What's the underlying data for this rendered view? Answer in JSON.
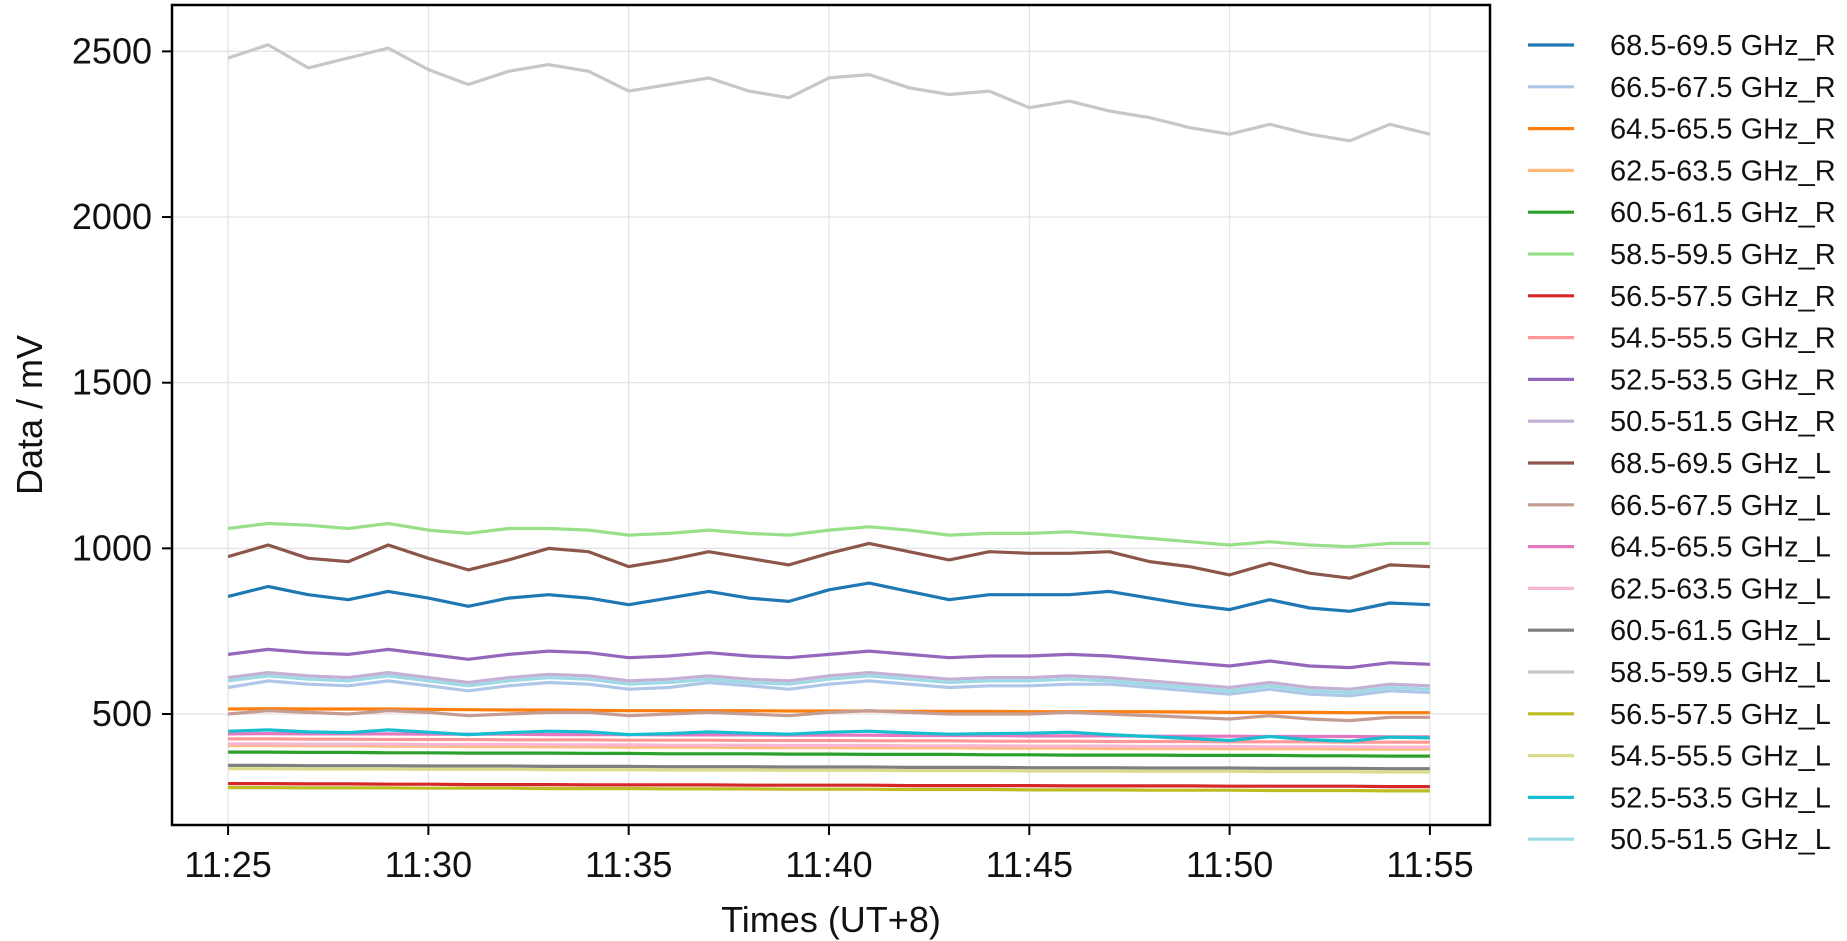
{
  "chart_data": {
    "type": "line",
    "title": "",
    "xlabel": "Times (UT+8)",
    "ylabel": "Data / mV",
    "x_ticks": [
      "11:25",
      "11:30",
      "11:35",
      "11:40",
      "11:45",
      "11:50",
      "11:55"
    ],
    "y_ticks": [
      500,
      1000,
      1500,
      2000,
      2500
    ],
    "xlim": [
      "11:23.6",
      "11:56.5"
    ],
    "ylim": [
      165,
      2640
    ],
    "grid": true,
    "legend_placement": "outside-right",
    "x": [
      "11:25",
      "11:26",
      "11:27",
      "11:28",
      "11:29",
      "11:30",
      "11:31",
      "11:32",
      "11:33",
      "11:34",
      "11:35",
      "11:36",
      "11:37",
      "11:38",
      "11:39",
      "11:40",
      "11:41",
      "11:42",
      "11:43",
      "11:44",
      "11:45",
      "11:46",
      "11:47",
      "11:48",
      "11:49",
      "11:50",
      "11:51",
      "11:52",
      "11:53",
      "11:54",
      "11:55"
    ],
    "series": [
      {
        "name": "68.5-69.5 GHz_R",
        "color": "#1f77b4",
        "values": [
          855,
          885,
          860,
          845,
          870,
          850,
          825,
          850,
          860,
          850,
          830,
          850,
          870,
          850,
          840,
          875,
          895,
          870,
          845,
          860,
          860,
          860,
          870,
          850,
          830,
          815,
          845,
          820,
          810,
          835,
          830
        ]
      },
      {
        "name": "66.5-67.5 GHz_R",
        "color": "#aec7e8",
        "values": [
          580,
          600,
          590,
          585,
          600,
          585,
          570,
          585,
          595,
          590,
          575,
          580,
          595,
          585,
          575,
          590,
          600,
          590,
          580,
          585,
          585,
          590,
          590,
          580,
          570,
          560,
          575,
          560,
          555,
          570,
          565
        ]
      },
      {
        "name": "64.5-65.5 GHz_R",
        "color": "#ff7f0e",
        "values": [
          515,
          516,
          515,
          515,
          515,
          514,
          513,
          512,
          512,
          511,
          510,
          510,
          510,
          510,
          509,
          509,
          509,
          508,
          508,
          508,
          507,
          507,
          507,
          507,
          506,
          505,
          505,
          505,
          504,
          504,
          504
        ]
      },
      {
        "name": "62.5-63.5 GHz_R",
        "color": "#ffbb78",
        "values": [
          405,
          405,
          404,
          404,
          403,
          403,
          402,
          402,
          401,
          401,
          400,
          400,
          400,
          399,
          399,
          399,
          398,
          398,
          398,
          397,
          397,
          397,
          396,
          396,
          396,
          395,
          395,
          395,
          394,
          394,
          394
        ]
      },
      {
        "name": "60.5-61.5 GHz_R",
        "color": "#2ca02c",
        "values": [
          385,
          385,
          384,
          384,
          383,
          383,
          382,
          382,
          382,
          381,
          381,
          380,
          380,
          380,
          379,
          379,
          378,
          378,
          378,
          377,
          377,
          376,
          376,
          376,
          375,
          375,
          375,
          374,
          374,
          373,
          373
        ]
      },
      {
        "name": "58.5-59.5 GHz_R",
        "color": "#98df8a",
        "values": [
          1060,
          1075,
          1070,
          1060,
          1075,
          1055,
          1045,
          1060,
          1060,
          1055,
          1040,
          1045,
          1055,
          1045,
          1040,
          1055,
          1065,
          1055,
          1040,
          1045,
          1045,
          1050,
          1040,
          1030,
          1020,
          1010,
          1020,
          1010,
          1005,
          1015,
          1015
        ]
      },
      {
        "name": "56.5-57.5 GHz_R",
        "color": "#d62728",
        "values": [
          290,
          290,
          289,
          289,
          288,
          288,
          287,
          287,
          287,
          286,
          286,
          286,
          286,
          285,
          285,
          285,
          285,
          284,
          284,
          284,
          284,
          283,
          283,
          283,
          283,
          282,
          282,
          282,
          282,
          281,
          281
        ]
      },
      {
        "name": "54.5-55.5 GHz_R",
        "color": "#ff9896",
        "values": [
          425,
          425,
          424,
          424,
          423,
          423,
          423,
          422,
          422,
          422,
          421,
          421,
          421,
          420,
          420,
          420,
          419,
          419,
          419,
          418,
          418,
          418,
          417,
          417,
          417,
          416,
          416,
          416,
          415,
          415,
          415
        ]
      },
      {
        "name": "52.5-53.5 GHz_R",
        "color": "#9467bd",
        "values": [
          680,
          695,
          685,
          680,
          695,
          680,
          665,
          680,
          690,
          685,
          670,
          675,
          685,
          675,
          670,
          680,
          690,
          680,
          670,
          675,
          675,
          680,
          675,
          665,
          655,
          645,
          660,
          645,
          640,
          655,
          650
        ]
      },
      {
        "name": "50.5-51.5 GHz_R",
        "color": "#c5b0d5",
        "values": [
          610,
          625,
          615,
          610,
          625,
          610,
          595,
          610,
          620,
          615,
          600,
          605,
          615,
          605,
          600,
          615,
          625,
          615,
          605,
          610,
          610,
          615,
          610,
          600,
          590,
          580,
          595,
          580,
          575,
          590,
          585
        ]
      },
      {
        "name": "68.5-69.5 GHz_L",
        "color": "#8c564b",
        "values": [
          975,
          1010,
          970,
          960,
          1010,
          970,
          935,
          965,
          1000,
          990,
          945,
          965,
          990,
          970,
          950,
          985,
          1015,
          990,
          965,
          990,
          985,
          985,
          990,
          960,
          945,
          920,
          955,
          925,
          910,
          950,
          945
        ]
      },
      {
        "name": "66.5-67.5 GHz_L",
        "color": "#c49c94",
        "values": [
          500,
          510,
          505,
          500,
          510,
          505,
          495,
          500,
          505,
          505,
          495,
          500,
          505,
          500,
          495,
          505,
          510,
          505,
          500,
          500,
          500,
          505,
          500,
          495,
          490,
          485,
          495,
          485,
          480,
          490,
          490
        ]
      },
      {
        "name": "64.5-65.5 GHz_L",
        "color": "#e377c2",
        "values": [
          440,
          441,
          440,
          440,
          440,
          439,
          439,
          439,
          438,
          438,
          438,
          437,
          437,
          437,
          436,
          436,
          436,
          435,
          435,
          435,
          434,
          434,
          434,
          433,
          433,
          433,
          432,
          432,
          432,
          431,
          431
        ]
      },
      {
        "name": "62.5-63.5 GHz_L",
        "color": "#f7b6d2",
        "values": [
          410,
          410,
          409,
          409,
          409,
          408,
          408,
          408,
          407,
          407,
          407,
          406,
          406,
          406,
          405,
          405,
          405,
          404,
          404,
          404,
          403,
          403,
          403,
          402,
          402,
          402,
          401,
          401,
          401,
          400,
          400
        ]
      },
      {
        "name": "60.5-61.5 GHz_L",
        "color": "#7f7f7f",
        "values": [
          345,
          345,
          344,
          344,
          344,
          343,
          343,
          343,
          342,
          342,
          342,
          341,
          341,
          341,
          340,
          340,
          340,
          339,
          339,
          339,
          338,
          338,
          338,
          337,
          337,
          337,
          336,
          336,
          336,
          335,
          335
        ]
      },
      {
        "name": "58.5-59.5 GHz_L",
        "color": "#c7c7c7",
        "values": [
          2480,
          2520,
          2450,
          2480,
          2510,
          2445,
          2400,
          2440,
          2460,
          2440,
          2380,
          2400,
          2420,
          2380,
          2360,
          2420,
          2430,
          2390,
          2370,
          2380,
          2330,
          2350,
          2320,
          2300,
          2270,
          2250,
          2280,
          2250,
          2230,
          2280,
          2250
        ]
      },
      {
        "name": "56.5-57.5 GHz_L",
        "color": "#bcbd22",
        "values": [
          278,
          278,
          277,
          277,
          277,
          276,
          276,
          276,
          275,
          275,
          275,
          274,
          274,
          274,
          273,
          273,
          273,
          272,
          272,
          272,
          271,
          271,
          271,
          270,
          270,
          270,
          269,
          269,
          269,
          268,
          268
        ]
      },
      {
        "name": "54.5-55.5 GHz_L",
        "color": "#dbdb8d",
        "values": [
          335,
          335,
          334,
          334,
          334,
          333,
          333,
          333,
          332,
          332,
          332,
          331,
          331,
          331,
          330,
          330,
          330,
          329,
          329,
          329,
          328,
          328,
          328,
          327,
          327,
          327,
          326,
          326,
          326,
          325,
          325
        ]
      },
      {
        "name": "52.5-53.5 GHz_L",
        "color": "#17becf",
        "values": [
          448,
          452,
          446,
          444,
          452,
          445,
          438,
          444,
          448,
          446,
          438,
          441,
          446,
          442,
          439,
          445,
          448,
          443,
          439,
          441,
          442,
          445,
          438,
          432,
          426,
          420,
          432,
          422,
          418,
          430,
          428
        ]
      },
      {
        "name": "50.5-51.5 GHz_L",
        "color": "#9edae5",
        "values": [
          600,
          615,
          605,
          600,
          615,
          600,
          585,
          600,
          610,
          605,
          590,
          595,
          605,
          595,
          590,
          605,
          615,
          605,
          595,
          600,
          600,
          605,
          600,
          590,
          580,
          570,
          585,
          570,
          565,
          580,
          575
        ]
      }
    ]
  }
}
